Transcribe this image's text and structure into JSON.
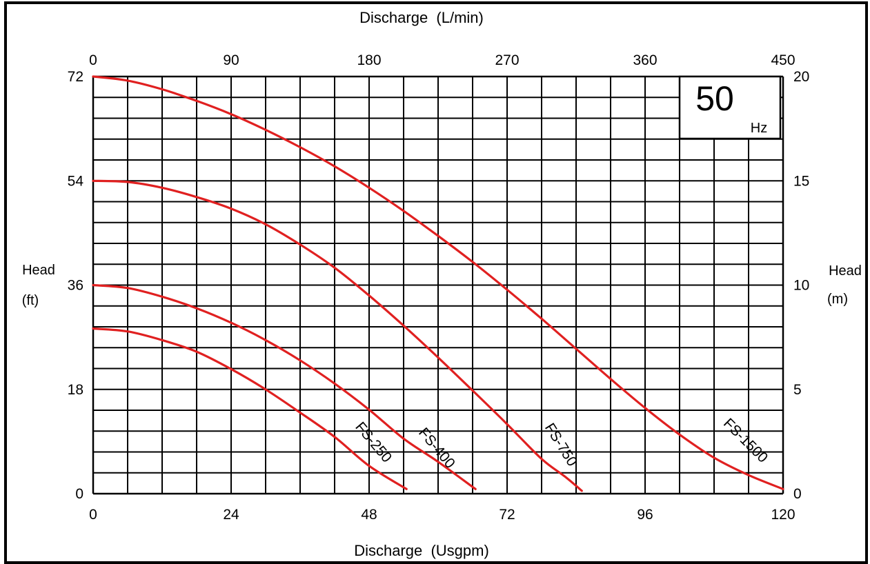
{
  "chart_data": {
    "type": "line",
    "x_top_label": "Discharge  (L/min)",
    "x_bottom_label": "Discharge  (Usgpm)",
    "y_left_label_1": "Head",
    "y_left_label_2": "(ft)",
    "y_right_label_1": "Head",
    "y_right_label_2": "(m)",
    "frequency_value": "50",
    "frequency_unit": "Hz",
    "x_bottom_range": [
      0,
      120
    ],
    "x_bottom_ticks": [
      "0",
      "24",
      "48",
      "72",
      "96",
      "120"
    ],
    "x_top_ticks": [
      "0",
      "90",
      "180",
      "270",
      "360",
      "450"
    ],
    "y_left_range": [
      0,
      72
    ],
    "y_left_ticks": [
      "0",
      "18",
      "36",
      "54",
      "72"
    ],
    "y_right_ticks": [
      "0",
      "5",
      "10",
      "15",
      "20"
    ],
    "grid": true,
    "line_color": "#e02020",
    "series": [
      {
        "name": "FS-250",
        "x": [
          0,
          6,
          12,
          18,
          24,
          30,
          36,
          42,
          48,
          54.5
        ],
        "y": [
          28.5,
          28.0,
          26.5,
          24.5,
          21.5,
          18.0,
          14.0,
          9.8,
          4.8,
          0.8
        ]
      },
      {
        "name": "FS-400",
        "x": [
          0,
          6,
          12,
          18,
          24,
          30,
          36,
          42,
          48,
          54,
          60,
          66.5
        ],
        "y": [
          36.0,
          35.5,
          34.0,
          32.0,
          29.5,
          26.5,
          23.0,
          19.0,
          14.5,
          9.5,
          5.5,
          0.8
        ]
      },
      {
        "name": "FS-750",
        "x": [
          0,
          6,
          12,
          18,
          24,
          30,
          36,
          42,
          48,
          54,
          60,
          66,
          72,
          78,
          82,
          85
        ],
        "y": [
          54.0,
          53.8,
          52.8,
          51.2,
          49.2,
          46.5,
          43.0,
          39.0,
          34.2,
          29.0,
          23.5,
          17.8,
          12.0,
          6.0,
          3.0,
          0.5
        ]
      },
      {
        "name": "FS-1500",
        "x": [
          0,
          6,
          12,
          18,
          24,
          30,
          36,
          42,
          48,
          54,
          60,
          66,
          72,
          78,
          84,
          90,
          96,
          102,
          108,
          114,
          120
        ],
        "y": [
          72.0,
          71.3,
          69.8,
          67.8,
          65.5,
          62.8,
          59.8,
          56.5,
          52.8,
          48.8,
          44.5,
          40.0,
          35.2,
          30.2,
          25.0,
          19.8,
          14.8,
          10.2,
          6.2,
          3.2,
          0.8
        ]
      }
    ]
  }
}
